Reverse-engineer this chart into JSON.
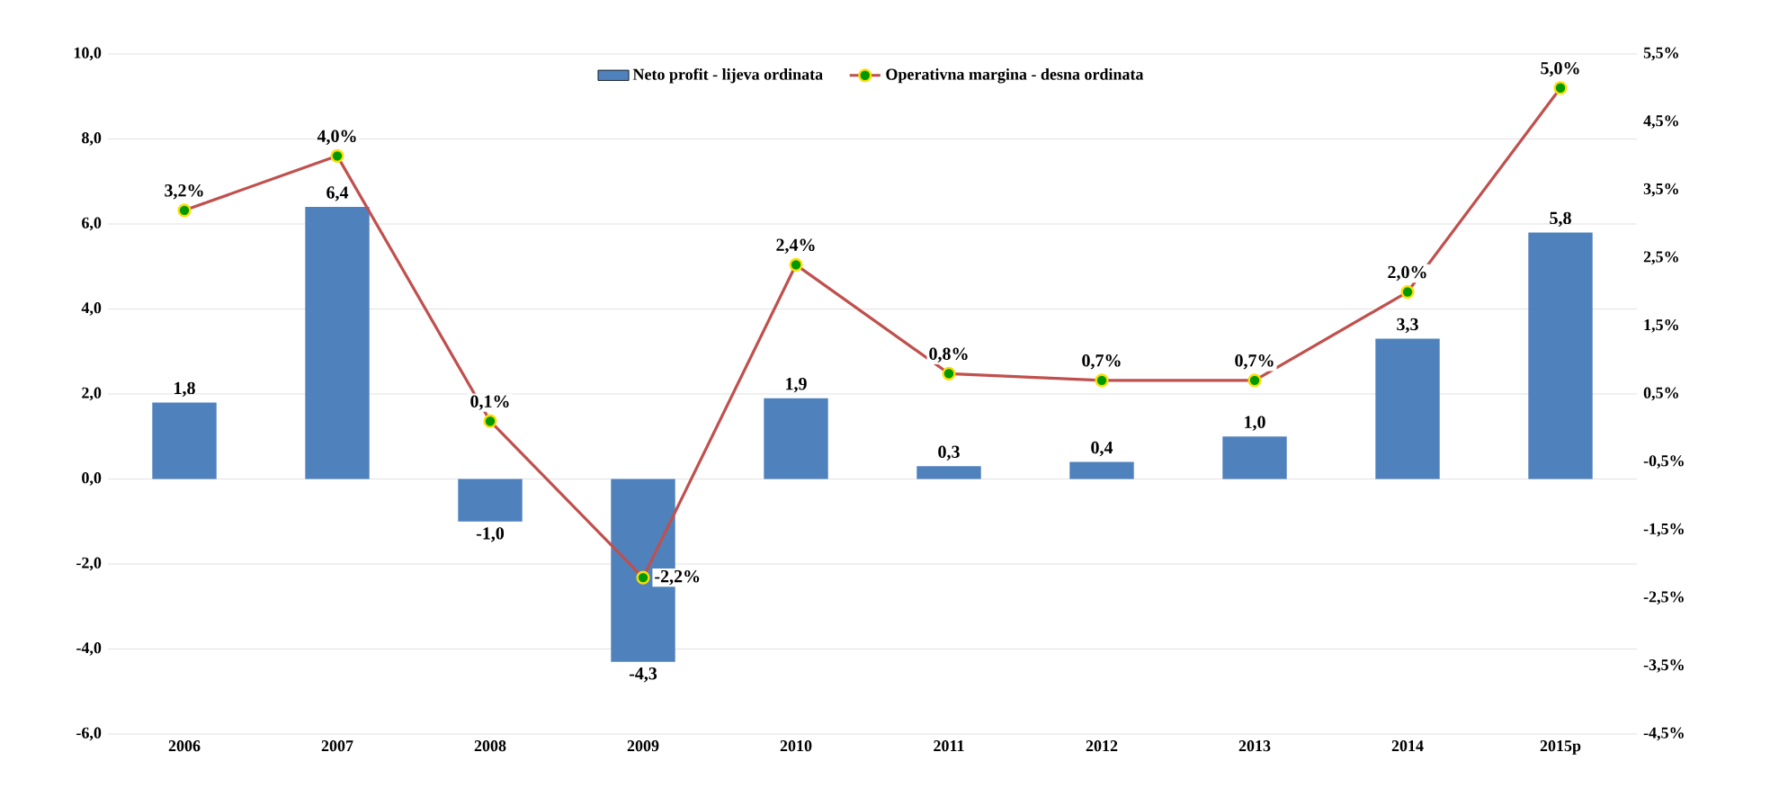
{
  "chart_data": {
    "type": "bar",
    "categories": [
      "2006",
      "2007",
      "2008",
      "2009",
      "2010",
      "2011",
      "2012",
      "2013",
      "2014",
      "2015p"
    ],
    "series": [
      {
        "name": "Neto profit  - lijeva ordinata",
        "color": "#4f81bd",
        "values": [
          1.8,
          6.4,
          -1.0,
          -4.3,
          1.9,
          0.3,
          0.4,
          1.0,
          3.3,
          5.8
        ],
        "value_labels": [
          "1,8",
          "6,4",
          "-1,0",
          "-4,3",
          "1,9",
          "0,3",
          "0,4",
          "1,0",
          "3,3",
          "5,8"
        ]
      },
      {
        "name": "Operativna margina - desna ordinata",
        "type": "line",
        "axis": "y2",
        "color": "#c0504d",
        "marker": "circle",
        "values": [
          3.2,
          4.0,
          0.1,
          -2.2,
          2.4,
          0.8,
          0.7,
          0.7,
          2.0,
          5.0
        ],
        "value_labels": [
          "3,2%",
          "4,0%",
          "0,1%",
          "-2,2%",
          "2,4%",
          "0,8%",
          "0,7%",
          "0,7%",
          "2,0%",
          "5,0%"
        ]
      }
    ],
    "ylim": [
      -6,
      10
    ],
    "yticks": [
      {
        "value": -6,
        "label": "-6,0"
      },
      {
        "value": -4,
        "label": "-4,0"
      },
      {
        "value": -2,
        "label": "-2,0"
      },
      {
        "value": 0,
        "label": "0,0"
      },
      {
        "value": 2,
        "label": "2,0"
      },
      {
        "value": 4,
        "label": "4,0"
      },
      {
        "value": 6,
        "label": "6,0"
      },
      {
        "value": 8,
        "label": "8,0"
      },
      {
        "value": 10,
        "label": "10,0"
      }
    ],
    "y2lim": [
      -4.5,
      5.5
    ],
    "y2ticks": [
      {
        "value": -4.5,
        "label": "-4,5%"
      },
      {
        "value": -3.5,
        "label": "-3,5%"
      },
      {
        "value": -2.5,
        "label": "-2,5%"
      },
      {
        "value": -1.5,
        "label": "-1,5%"
      },
      {
        "value": -0.5,
        "label": "-0,5%"
      },
      {
        "value": 0.5,
        "label": "0,5%"
      },
      {
        "value": 1.5,
        "label": "1,5%"
      },
      {
        "value": 2.5,
        "label": "2,5%"
      },
      {
        "value": 3.5,
        "label": "3,5%"
      },
      {
        "value": 4.5,
        "label": "4,5%"
      },
      {
        "value": 5.5,
        "label": "5,5%"
      }
    ],
    "grid": "y",
    "legend": "top"
  }
}
